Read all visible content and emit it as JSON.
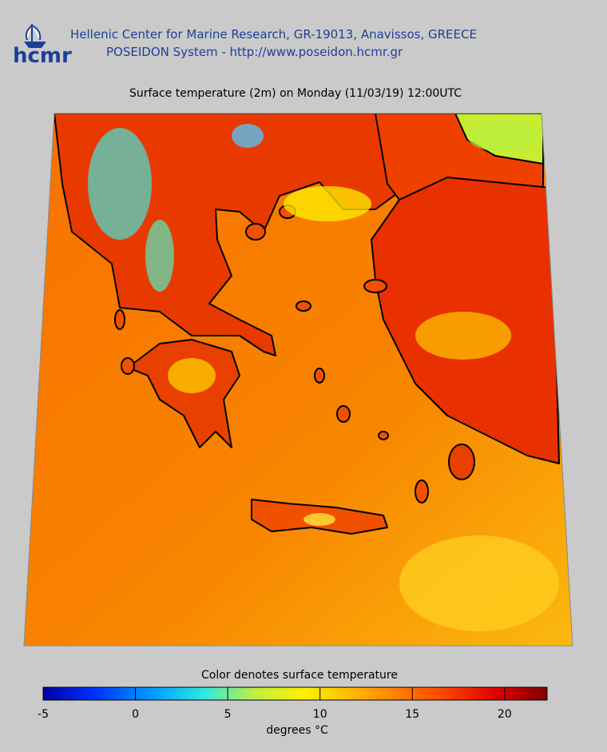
{
  "header": {
    "logo": "hcmr",
    "line1": "Hellenic Center for Marine Research, GR-19013, Anavissos, GREECE",
    "line2": "POSEIDON System - http://www.poseidon.hcmr.gr"
  },
  "map": {
    "title": "Surface temperature (2m) on Monday (11/03/19) 12:00UTC"
  },
  "colorbar": {
    "label": "Color denotes surface temperature",
    "unit": "degrees °C",
    "lim": [
      -5,
      22.3
    ],
    "ticks": [
      -5,
      0,
      5,
      10,
      15,
      20
    ]
  }
}
